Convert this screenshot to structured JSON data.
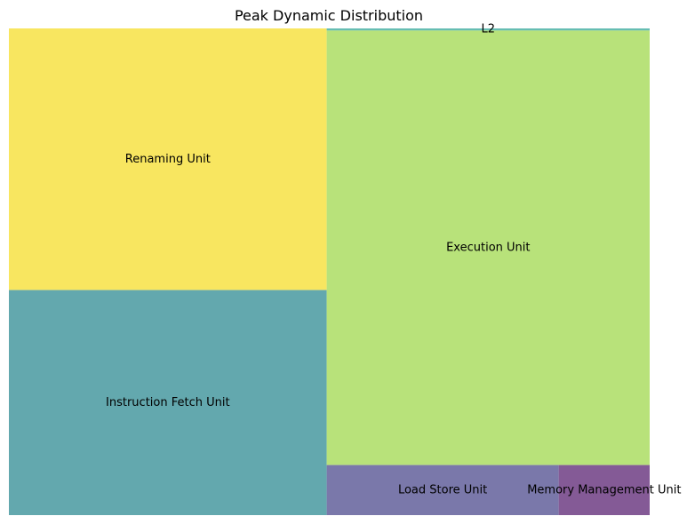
{
  "chart_data": {
    "type": "treemap",
    "title": "Peak Dynamic Distribution",
    "items": [
      {
        "label": "Renaming Unit",
        "value": 36.5,
        "color": "#f8e660"
      },
      {
        "label": "Instruction Fetch Unit",
        "value": 31.4,
        "color": "#63a8ae"
      },
      {
        "label": "L2",
        "value": 0.3,
        "color": "#66bdb3"
      },
      {
        "label": "Execution Unit",
        "value": 61.6,
        "color": "#b8e27a"
      },
      {
        "label": "Load Store Unit",
        "value": 5.1,
        "color": "#7a78aa"
      },
      {
        "label": "Memory Management Unit",
        "value": 2.0,
        "color": "#845a96"
      }
    ]
  }
}
